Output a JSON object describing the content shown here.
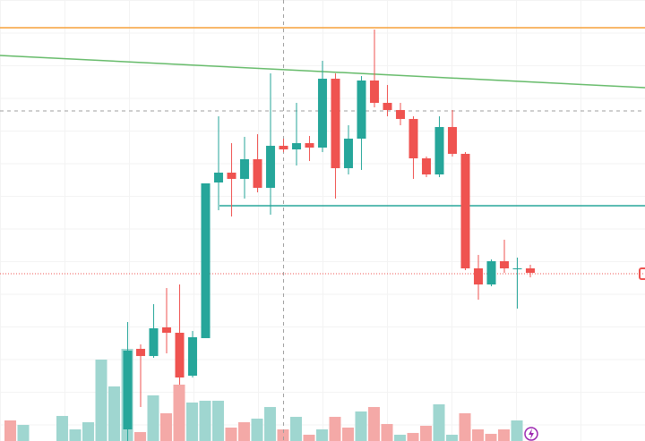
{
  "chart_data": {
    "type": "candlestick",
    "ylim": [
      0,
      493
    ],
    "vlim": [
      0,
      493
    ],
    "categories": [
      null,
      null,
      null,
      null,
      null,
      null,
      null,
      null,
      null,
      null,
      null,
      null,
      null,
      null,
      null,
      null,
      null,
      null,
      null,
      null,
      null,
      null,
      null,
      null,
      null,
      null,
      null,
      null,
      null,
      null,
      null,
      null,
      null,
      null,
      null,
      null,
      null,
      null,
      null,
      null,
      null
    ],
    "open": [
      null,
      null,
      null,
      null,
      null,
      null,
      null,
      null,
      null,
      13,
      103,
      95,
      127,
      121,
      73,
      115,
      289,
      300,
      293,
      315,
      283,
      330,
      326,
      333,
      328,
      405,
      305,
      338,
      403,
      378,
      370,
      360,
      316,
      298,
      351,
      321,
      193,
      175,
      201,
      192,
      193
    ],
    "high": [
      null,
      null,
      null,
      null,
      null,
      null,
      null,
      null,
      null,
      133,
      108,
      153,
      171,
      175,
      123,
      288,
      363,
      333,
      340,
      343,
      411,
      338,
      378,
      341,
      425,
      411,
      353,
      408,
      460,
      398,
      378,
      363,
      318,
      363,
      370,
      323,
      208,
      203,
      225,
      205,
      197
    ],
    "low": [
      null,
      null,
      null,
      null,
      null,
      null,
      null,
      null,
      null,
      0,
      38,
      93,
      98,
      63,
      71,
      115,
      258,
      251,
      271,
      278,
      253,
      323,
      308,
      313,
      323,
      271,
      298,
      303,
      373,
      363,
      353,
      293,
      295,
      295,
      318,
      191,
      158,
      173,
      188,
      148,
      183
    ],
    "close": [
      null,
      null,
      null,
      null,
      null,
      null,
      null,
      null,
      null,
      101,
      95,
      126,
      121,
      71,
      116,
      288,
      300,
      293,
      315,
      283,
      330,
      326,
      333,
      328,
      405,
      305,
      338,
      403,
      378,
      370,
      360,
      316,
      298,
      351,
      321,
      193,
      175,
      201,
      193,
      193,
      188
    ],
    "volume": [
      23,
      18,
      null,
      null,
      28,
      13,
      21,
      91,
      61,
      103,
      10,
      51,
      31,
      63,
      43,
      45,
      45,
      15,
      21,
      25,
      38,
      13,
      27,
      7,
      13,
      27,
      15,
      33,
      38,
      19,
      7,
      9,
      17,
      41,
      7,
      31,
      13,
      8,
      13,
      23,
      null
    ],
    "volume_colors": [
      "#f4a9a7",
      "#9fd6d0",
      "#9fd6d0",
      "#9fd6d0",
      "#9fd6d0",
      "#9fd6d0",
      "#9fd6d0",
      "#9fd6d0",
      "#9fd6d0",
      "#9fd6d0",
      "#f4a9a7",
      "#9fd6d0",
      "#f4a9a7",
      "#f4a9a7",
      "#9fd6d0",
      "#9fd6d0",
      "#9fd6d0",
      "#f4a9a7",
      "#f4a9a7",
      "#9fd6d0",
      "#9fd6d0",
      "#f4a9a7",
      "#9fd6d0",
      "#f4a9a7",
      "#9fd6d0",
      "#f4a9a7",
      "#f4a9a7",
      "#9fd6d0",
      "#f4a9a7",
      "#f4a9a7",
      "#9fd6d0",
      "#f4a9a7",
      "#f4a9a7",
      "#9fd6d0",
      "#9fd6d0",
      "#f4a9a7",
      "#f4a9a7",
      "#f4a9a7",
      "#f4a9a7",
      "#9fd6d0",
      "#9fd6d0"
    ],
    "up_color": "#26a69a",
    "down_color": "#ef5350",
    "levels": [
      {
        "value": 462,
        "color": "#f7a13a",
        "style": "solid"
      },
      {
        "value": 369,
        "color": "#9e9e9e",
        "style": "dashed"
      },
      {
        "value": 263,
        "color": "#26a69a",
        "style": "solid"
      },
      {
        "value": 187,
        "color": "#ef5350",
        "style": "dotted"
      }
    ],
    "trend_line": {
      "start": 431,
      "end": 395,
      "color": "#66bb6a"
    },
    "crosshair_index": 21
  }
}
